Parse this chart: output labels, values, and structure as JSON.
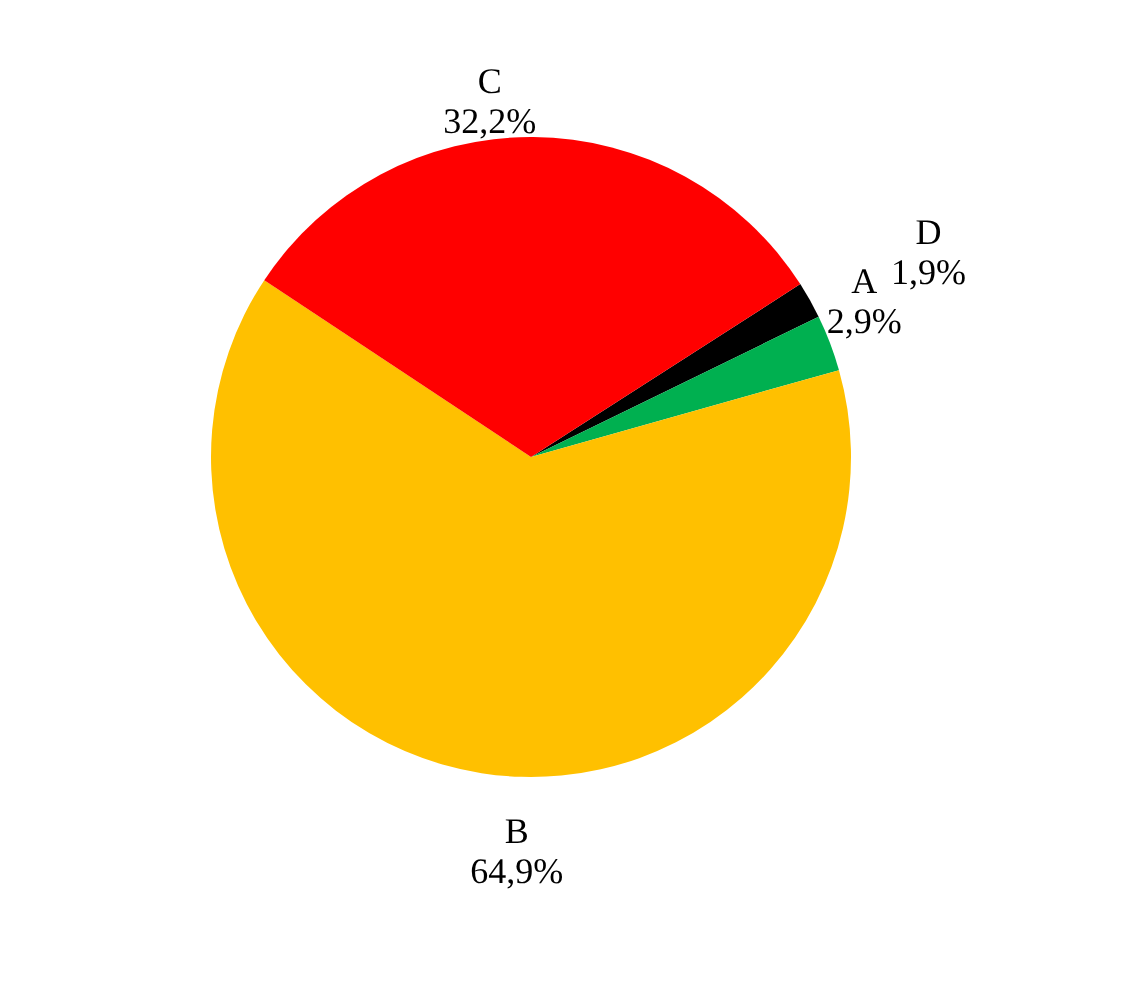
{
  "chart_data": {
    "type": "pie",
    "categories": [
      "D",
      "A",
      "B",
      "C"
    ],
    "values": [
      1.9,
      2.9,
      64.9,
      32.2
    ],
    "value_labels": [
      "1,9%",
      "2,9%",
      "64,9%",
      "32,2%"
    ],
    "colors": [
      "#000000",
      "#00b050",
      "#ffc000",
      "#ff0000"
    ],
    "legend": false
  }
}
